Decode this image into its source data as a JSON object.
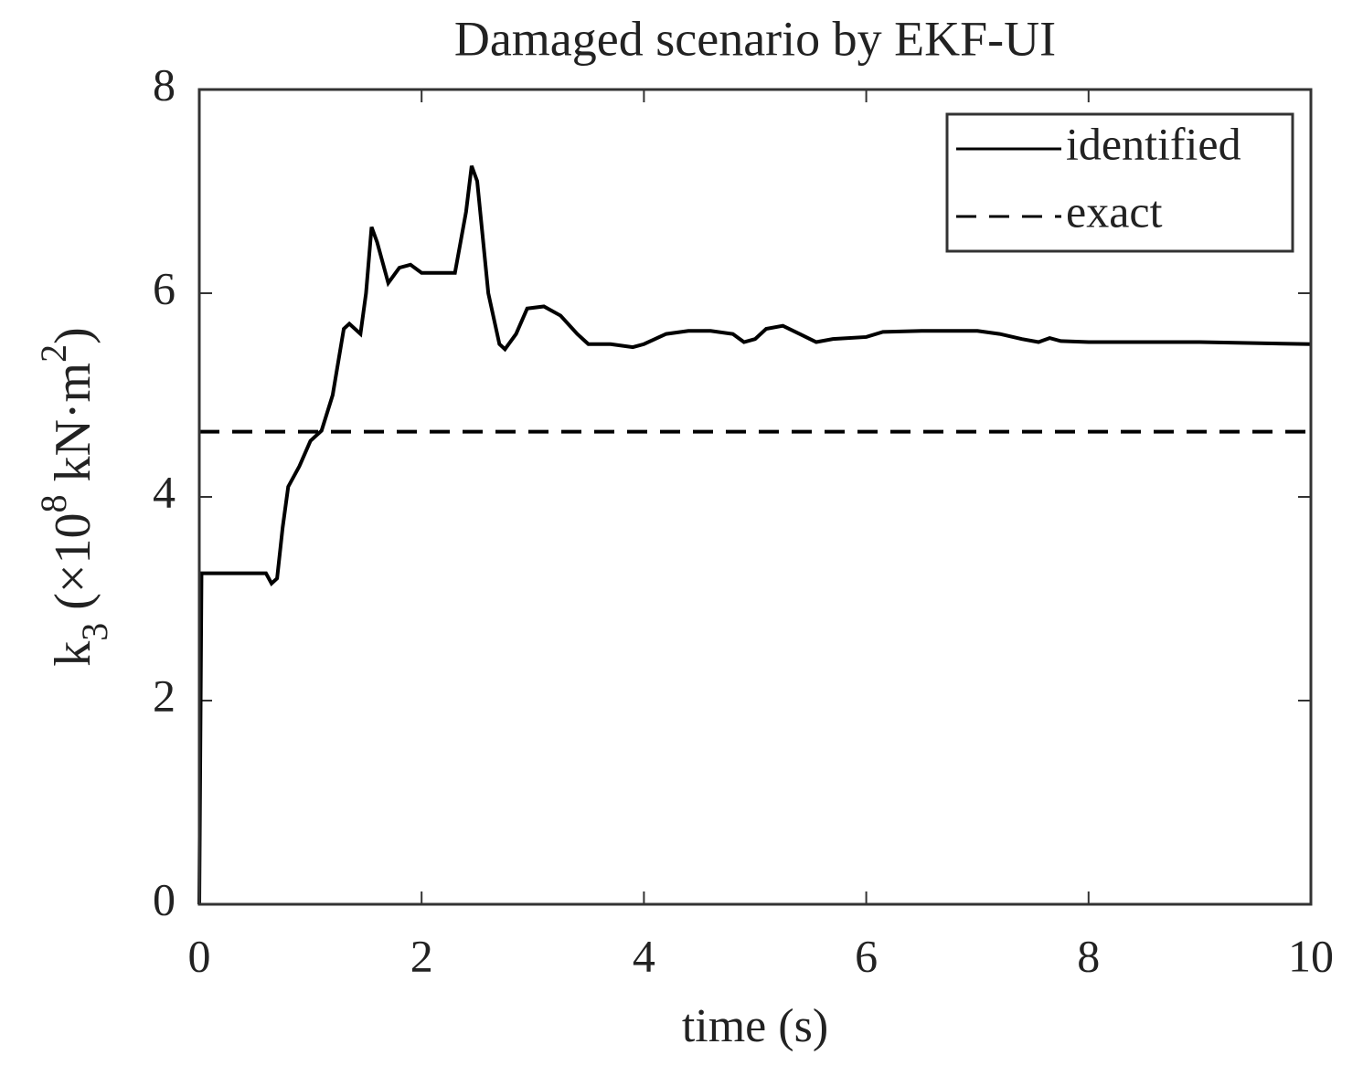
{
  "chart_data": {
    "type": "line",
    "title": "Damaged scenario by EKF-UI",
    "xlabel": "time (s)",
    "ylabel": [
      "k",
      "3",
      " (×10",
      "8",
      " kN·m",
      "2",
      ")"
    ],
    "xlim": [
      0,
      10
    ],
    "xticks": [
      0,
      2,
      4,
      6,
      8,
      10
    ],
    "ylim": [
      0,
      8
    ],
    "yticks": [
      0,
      2,
      4,
      6,
      8
    ],
    "grid": false,
    "legend": "upper right",
    "series": [
      {
        "name": "identified",
        "color": "#000000",
        "linestyle": "solid",
        "x": [
          0,
          0.02,
          0.5,
          0.6,
          0.65,
          0.7,
          0.75,
          0.8,
          0.9,
          1.0,
          1.1,
          1.2,
          1.3,
          1.35,
          1.45,
          1.5,
          1.55,
          1.6,
          1.7,
          1.8,
          1.9,
          2.0,
          2.1,
          2.3,
          2.4,
          2.45,
          2.5,
          2.6,
          2.7,
          2.75,
          2.85,
          2.95,
          3.1,
          3.25,
          3.4,
          3.5,
          3.7,
          3.9,
          4.0,
          4.2,
          4.4,
          4.6,
          4.8,
          4.9,
          5.0,
          5.1,
          5.25,
          5.4,
          5.55,
          5.7,
          6.0,
          6.15,
          6.5,
          7.0,
          7.2,
          7.4,
          7.55,
          7.65,
          7.75,
          8.0,
          9.0,
          10
        ],
        "values": [
          0,
          3.25,
          3.25,
          3.25,
          3.15,
          3.2,
          3.7,
          4.1,
          4.3,
          4.55,
          4.65,
          5.0,
          5.65,
          5.7,
          5.6,
          6.0,
          6.65,
          6.5,
          6.1,
          6.25,
          6.28,
          6.2,
          6.2,
          6.2,
          6.8,
          7.25,
          7.1,
          6.0,
          5.5,
          5.45,
          5.6,
          5.85,
          5.87,
          5.78,
          5.6,
          5.5,
          5.5,
          5.47,
          5.5,
          5.6,
          5.63,
          5.63,
          5.6,
          5.52,
          5.55,
          5.65,
          5.68,
          5.6,
          5.52,
          5.55,
          5.57,
          5.62,
          5.63,
          5.63,
          5.6,
          5.55,
          5.52,
          5.56,
          5.53,
          5.52,
          5.52,
          5.5
        ]
      },
      {
        "name": "exact",
        "color": "#000000",
        "linestyle": "dashed",
        "x": [
          0,
          10
        ],
        "values": [
          4.64,
          4.64
        ]
      }
    ]
  }
}
